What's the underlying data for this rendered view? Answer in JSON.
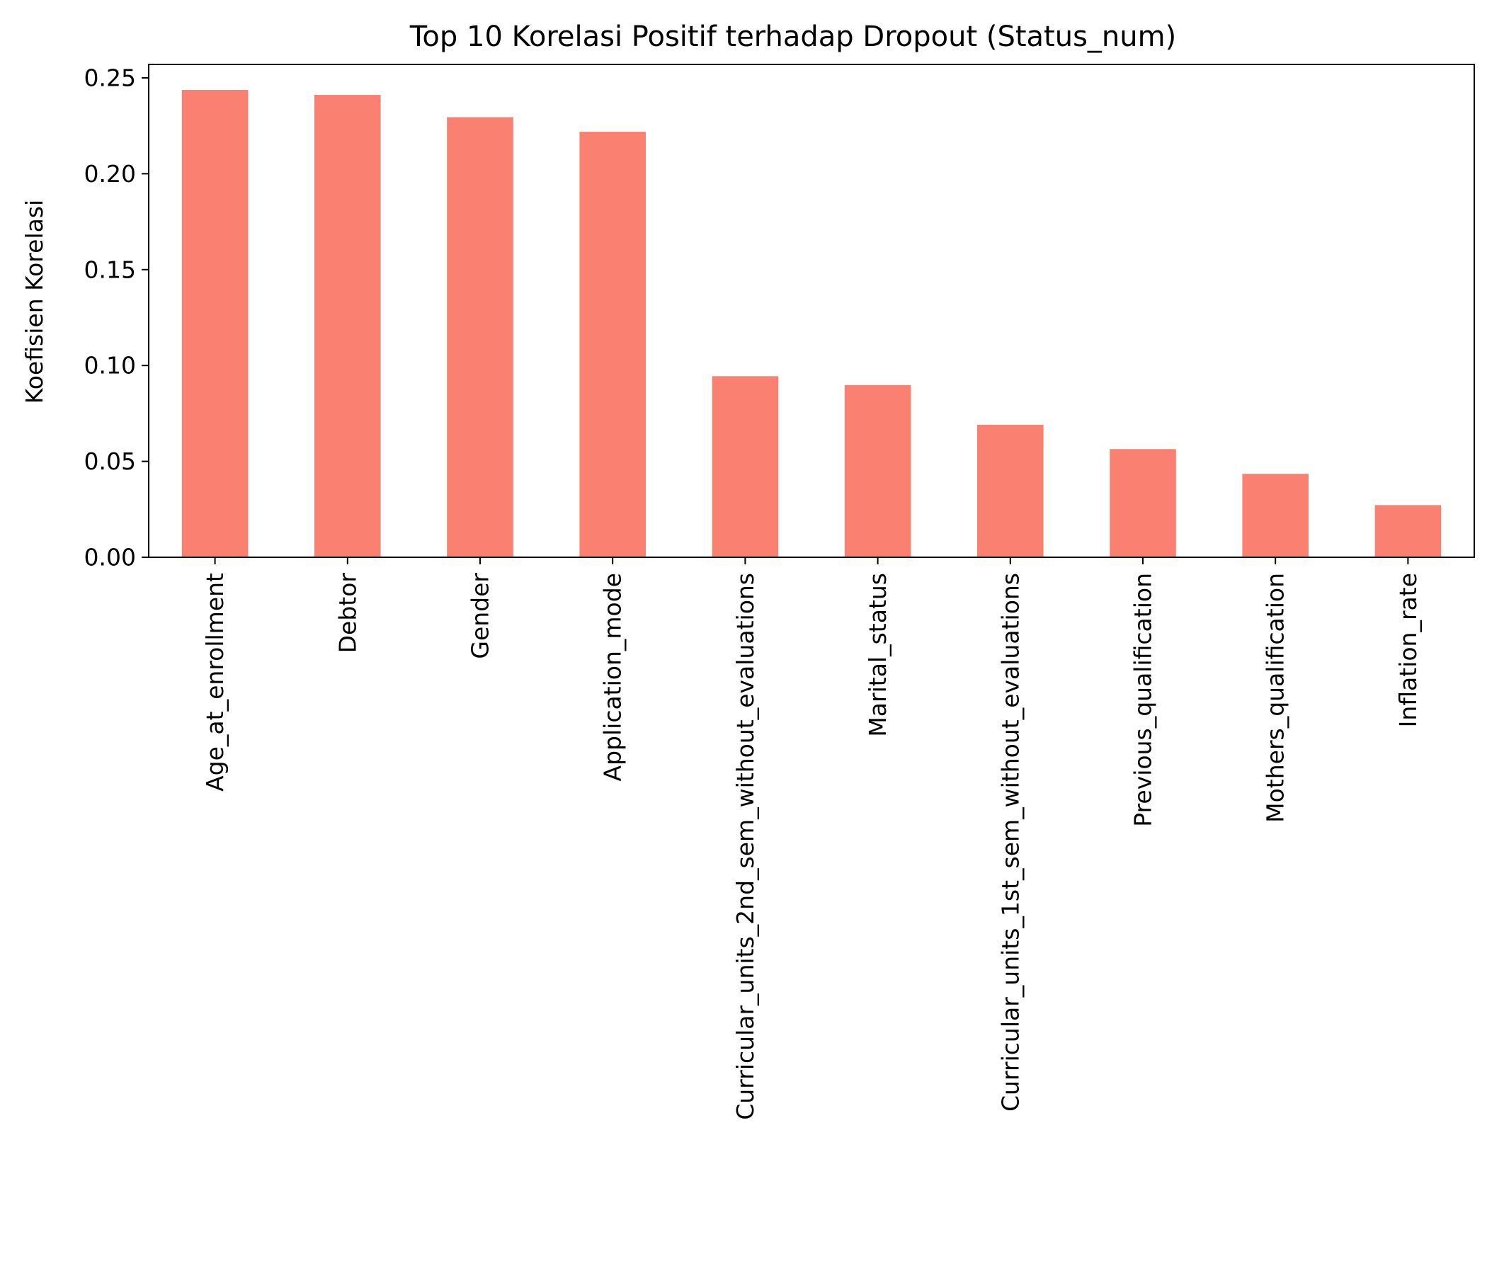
{
  "chart_data": {
    "type": "bar",
    "title": "Top 10 Korelasi Positif terhadap Dropout (Status_num)",
    "xlabel": "",
    "ylabel": "Koefisien Korelasi",
    "ylim": [
      0,
      0.257
    ],
    "yticks": [
      "0.00",
      "0.05",
      "0.10",
      "0.15",
      "0.20",
      "0.25"
    ],
    "grid": false,
    "categories": [
      "Age_at_enrollment",
      "Debtor",
      "Gender",
      "Application_mode",
      "Curricular_units_2nd_sem_without_evaluations",
      "Marital_status",
      "Curricular_units_1st_sem_without_evaluations",
      "Previous_qualification",
      "Mothers_qualification",
      "Inflation_rate"
    ],
    "values": [
      0.2437,
      0.2411,
      0.2295,
      0.2219,
      0.0944,
      0.0898,
      0.0691,
      0.0564,
      0.0435,
      0.0272
    ],
    "bar_color": "#fa8072"
  }
}
